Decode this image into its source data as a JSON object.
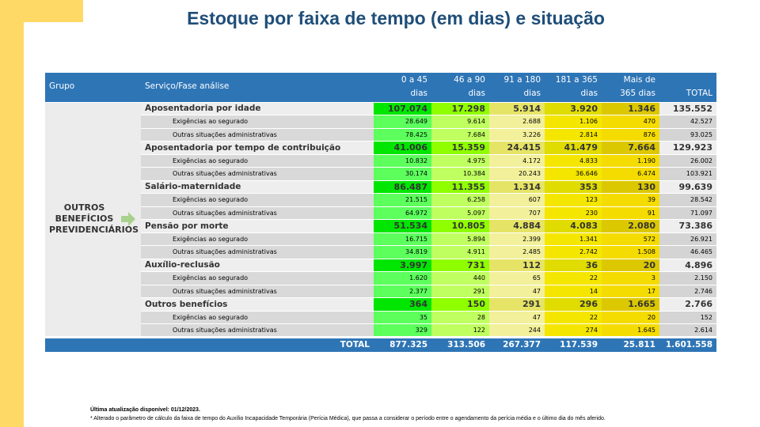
{
  "title": "Estoque por faixa de tempo (em dias) e situação",
  "colors": {
    "header": "#2e75b6",
    "accent": "#ffd966",
    "title": "#1f4e79",
    "main": [
      "#00e600",
      "#8fff00",
      "#e6e466",
      "#e0dc00",
      "#dcc800",
      "#eeeeee"
    ],
    "sub": [
      "#5cff5c",
      "#c0ff60",
      "#f2f09a",
      "#f5e600",
      "#f5dc00",
      "#d4d4d4"
    ]
  },
  "table": {
    "headers": {
      "group": "Grupo",
      "service": "Serviço/Fase análise",
      "cols": [
        [
          "0 a 45",
          "dias"
        ],
        [
          "46 a 90",
          "dias"
        ],
        [
          "91 a 180",
          "dias"
        ],
        [
          "181 a 365",
          "dias"
        ],
        [
          "Mais de",
          "365  dias"
        ],
        [
          "",
          "TOTAL"
        ]
      ]
    },
    "group": [
      "OUTROS",
      "BENEFÍCIOS",
      "PREVIDENCIÁRIOS"
    ],
    "sections": [
      {
        "label": "Aposentadoria por idade",
        "values": [
          "107.074",
          "17.298",
          "5.914",
          "3.920",
          "1.346",
          "135.552"
        ],
        "subs": [
          {
            "label": "Exigências ao segurado",
            "values": [
              "28.649",
              "9.614",
              "2.688",
              "1.106",
              "470",
              "42.527"
            ]
          },
          {
            "label": "Outras situações administrativas",
            "values": [
              "78.425",
              "7.684",
              "3.226",
              "2.814",
              "876",
              "93.025"
            ]
          }
        ]
      },
      {
        "label": "Aposentadoria por tempo de contribuição",
        "values": [
          "41.006",
          "15.359",
          "24.415",
          "41.479",
          "7.664",
          "129.923"
        ],
        "subs": [
          {
            "label": "Exigências ao segurado",
            "values": [
              "10.832",
              "4.975",
              "4.172",
              "4.833",
              "1.190",
              "26.002"
            ]
          },
          {
            "label": "Outras situações administrativas",
            "values": [
              "30.174",
              "10.384",
              "20.243",
              "36.646",
              "6.474",
              "103.921"
            ]
          }
        ]
      },
      {
        "label": "Salário-maternidade",
        "values": [
          "86.487",
          "11.355",
          "1.314",
          "353",
          "130",
          "99.639"
        ],
        "subs": [
          {
            "label": "Exigências ao segurado",
            "values": [
              "21.515",
              "6.258",
              "607",
              "123",
              "39",
              "28.542"
            ]
          },
          {
            "label": "Outras situações administrativas",
            "values": [
              "64.972",
              "5.097",
              "707",
              "230",
              "91",
              "71.097"
            ]
          }
        ]
      },
      {
        "label": "Pensão por morte",
        "values": [
          "51.534",
          "10.805",
          "4.884",
          "4.083",
          "2.080",
          "73.386"
        ],
        "subs": [
          {
            "label": "Exigências ao segurado",
            "values": [
              "16.715",
              "5.894",
              "2.399",
              "1.341",
              "572",
              "26.921"
            ]
          },
          {
            "label": "Outras situações administrativas",
            "values": [
              "34.819",
              "4.911",
              "2.485",
              "2.742",
              "1.508",
              "46.465"
            ]
          }
        ]
      },
      {
        "label": "Auxílio-reclusão",
        "values": [
          "3.997",
          "731",
          "112",
          "36",
          "20",
          "4.896"
        ],
        "subs": [
          {
            "label": "Exigências ao segurado",
            "values": [
              "1.620",
              "440",
              "65",
              "22",
              "3",
              "2.150"
            ]
          },
          {
            "label": "Outras situações administrativas",
            "values": [
              "2.377",
              "291",
              "47",
              "14",
              "17",
              "2.746"
            ]
          }
        ]
      },
      {
        "label": "Outros benefícios",
        "values": [
          "364",
          "150",
          "291",
          "296",
          "1.665",
          "2.766"
        ],
        "subs": [
          {
            "label": "Exigências ao segurado",
            "values": [
              "35",
              "28",
              "47",
              "22",
              "20",
              "152"
            ]
          },
          {
            "label": "Outras situações administrativas",
            "values": [
              "329",
              "122",
              "244",
              "274",
              "1.645",
              "2.614"
            ]
          }
        ]
      }
    ],
    "total": {
      "label": "TOTAL",
      "values": [
        "877.325",
        "313.506",
        "267.377",
        "117.539",
        "25.811",
        "1.601.558"
      ]
    }
  },
  "footer": {
    "update": "Última atualização disponível:  01/12/2023.",
    "note": "* Alterado o parâmetro de cálculo da faixa de tempo do Auxílio Incapacidade Temporária (Perícia Médica), que passa a considerar o período entre o agendamento da perícia média e o último dia do mês aferido."
  }
}
